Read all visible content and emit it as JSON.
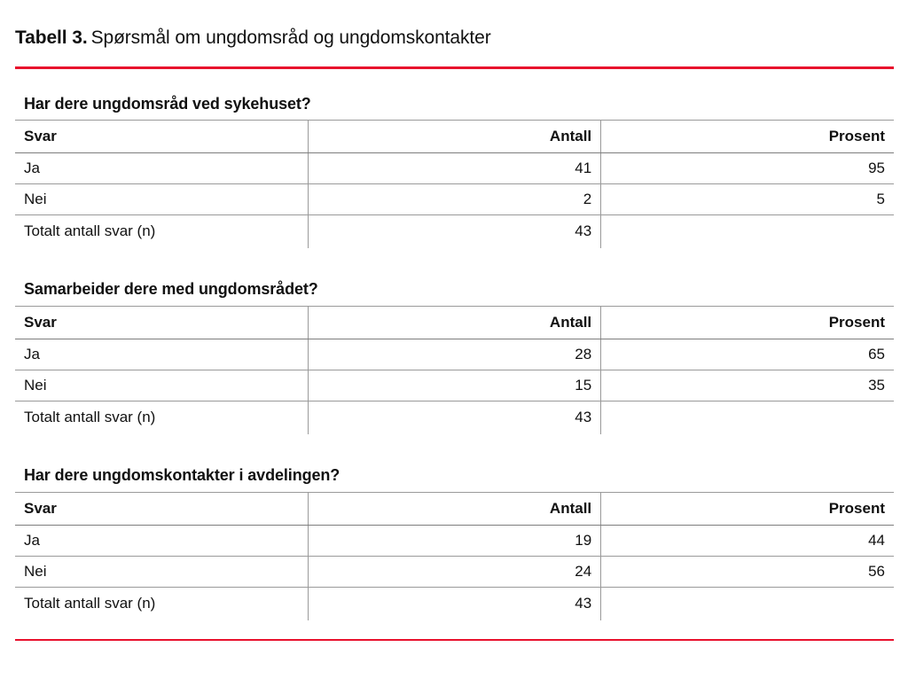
{
  "title": {
    "label": "Tabell 3.",
    "caption": "Spørsmål om ungdomsråd og ungdomskontakter"
  },
  "colors": {
    "rule_red": "#e8112d",
    "grid_line": "#9a9a9a",
    "text": "#111111"
  },
  "columns": [
    "Svar",
    "Antall",
    "Prosent"
  ],
  "sections": [
    {
      "heading": "Har dere ungdomsråd ved sykehuset?",
      "rows": [
        {
          "svar": "Ja",
          "antall": "41",
          "prosent": "95"
        },
        {
          "svar": "Nei",
          "antall": "2",
          "prosent": "5"
        },
        {
          "svar": "Totalt antall svar (n)",
          "antall": "43",
          "prosent": ""
        }
      ]
    },
    {
      "heading": "Samarbeider dere med ungdomsrådet?",
      "rows": [
        {
          "svar": "Ja",
          "antall": "28",
          "prosent": "65"
        },
        {
          "svar": "Nei",
          "antall": "15",
          "prosent": "35"
        },
        {
          "svar": "Totalt antall svar (n)",
          "antall": "43",
          "prosent": ""
        }
      ]
    },
    {
      "heading": "Har dere ungdomskontakter i avdelingen?",
      "rows": [
        {
          "svar": "Ja",
          "antall": "19",
          "prosent": "44"
        },
        {
          "svar": "Nei",
          "antall": "24",
          "prosent": "56"
        },
        {
          "svar": "Totalt antall svar (n)",
          "antall": "43",
          "prosent": ""
        }
      ]
    }
  ],
  "chart_data": {
    "type": "table",
    "title": "Tabell 3. Spørsmål om ungdomsråd og ungdomskontakter",
    "columns": [
      "Svar",
      "Antall",
      "Prosent"
    ],
    "tables": [
      {
        "question": "Har dere ungdomsråd ved sykehuset?",
        "rows": [
          [
            "Ja",
            41,
            95
          ],
          [
            "Nei",
            2,
            5
          ],
          [
            "Totalt antall svar (n)",
            43,
            null
          ]
        ]
      },
      {
        "question": "Samarbeider dere med ungdomsrådet?",
        "rows": [
          [
            "Ja",
            28,
            65
          ],
          [
            "Nei",
            15,
            35
          ],
          [
            "Totalt antall svar (n)",
            43,
            null
          ]
        ]
      },
      {
        "question": "Har dere ungdomskontakter i avdelingen?",
        "rows": [
          [
            "Ja",
            19,
            44
          ],
          [
            "Nei",
            24,
            56
          ],
          [
            "Totalt antall svar (n)",
            43,
            null
          ]
        ]
      }
    ]
  }
}
